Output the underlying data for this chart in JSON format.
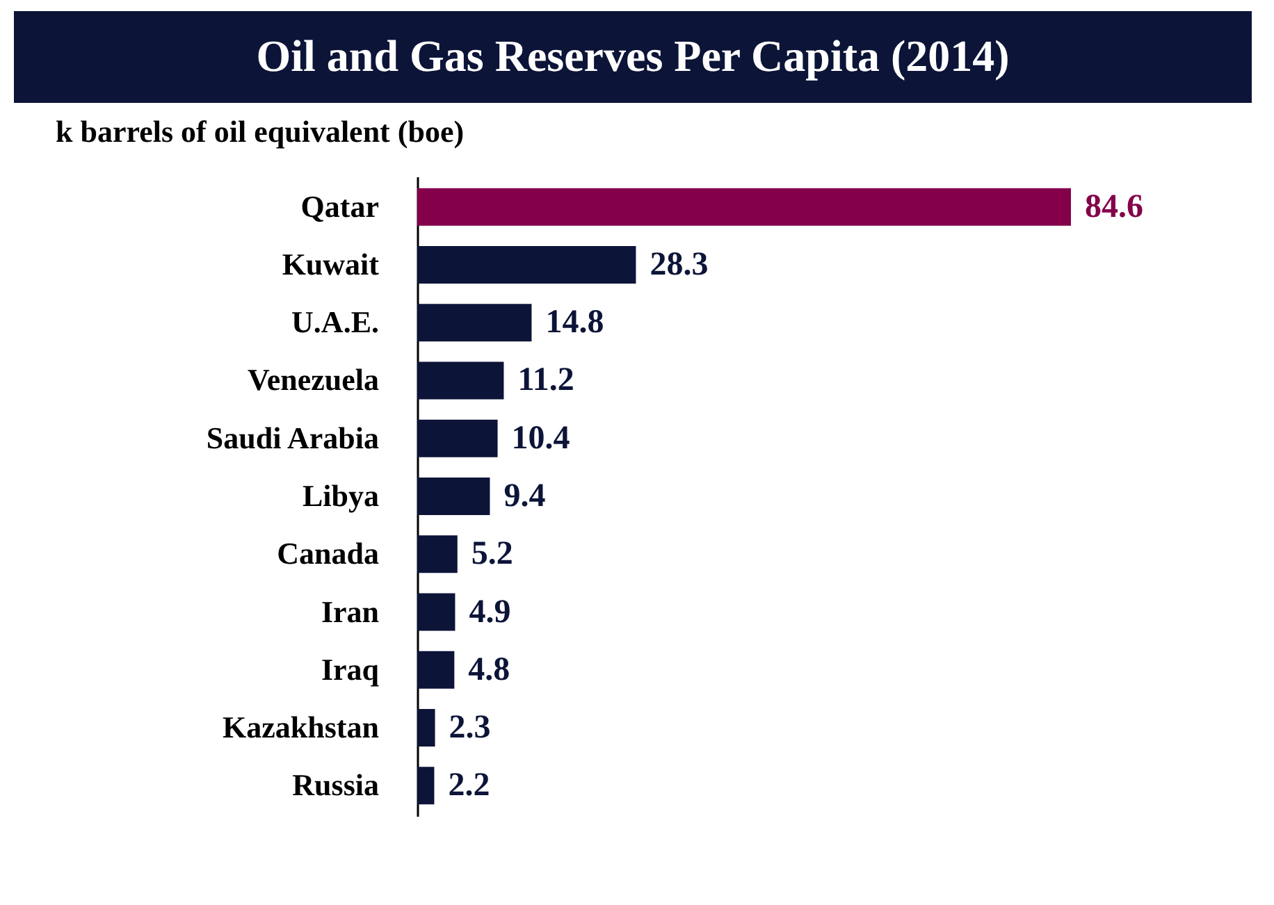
{
  "chart_data": {
    "type": "bar",
    "orientation": "horizontal",
    "title": "Oil and Gas Reserves Per Capita (2014)",
    "subtitle": "k barrels of oil equivalent (boe)",
    "categories": [
      "Qatar",
      "Kuwait",
      "U.A.E.",
      "Venezuela",
      "Saudi Arabia",
      "Libya",
      "Canada",
      "Iran",
      "Iraq",
      "Kazakhstan",
      "Russia"
    ],
    "values": [
      84.6,
      28.3,
      14.8,
      11.2,
      10.4,
      9.4,
      5.2,
      4.9,
      4.8,
      2.3,
      2.2
    ],
    "colors": [
      "#85004b",
      "#0c1538",
      "#0c1538",
      "#0c1538",
      "#0c1538",
      "#0c1538",
      "#0c1538",
      "#0c1538",
      "#0c1538",
      "#0c1538",
      "#0c1538"
    ],
    "data_labels": true
  }
}
